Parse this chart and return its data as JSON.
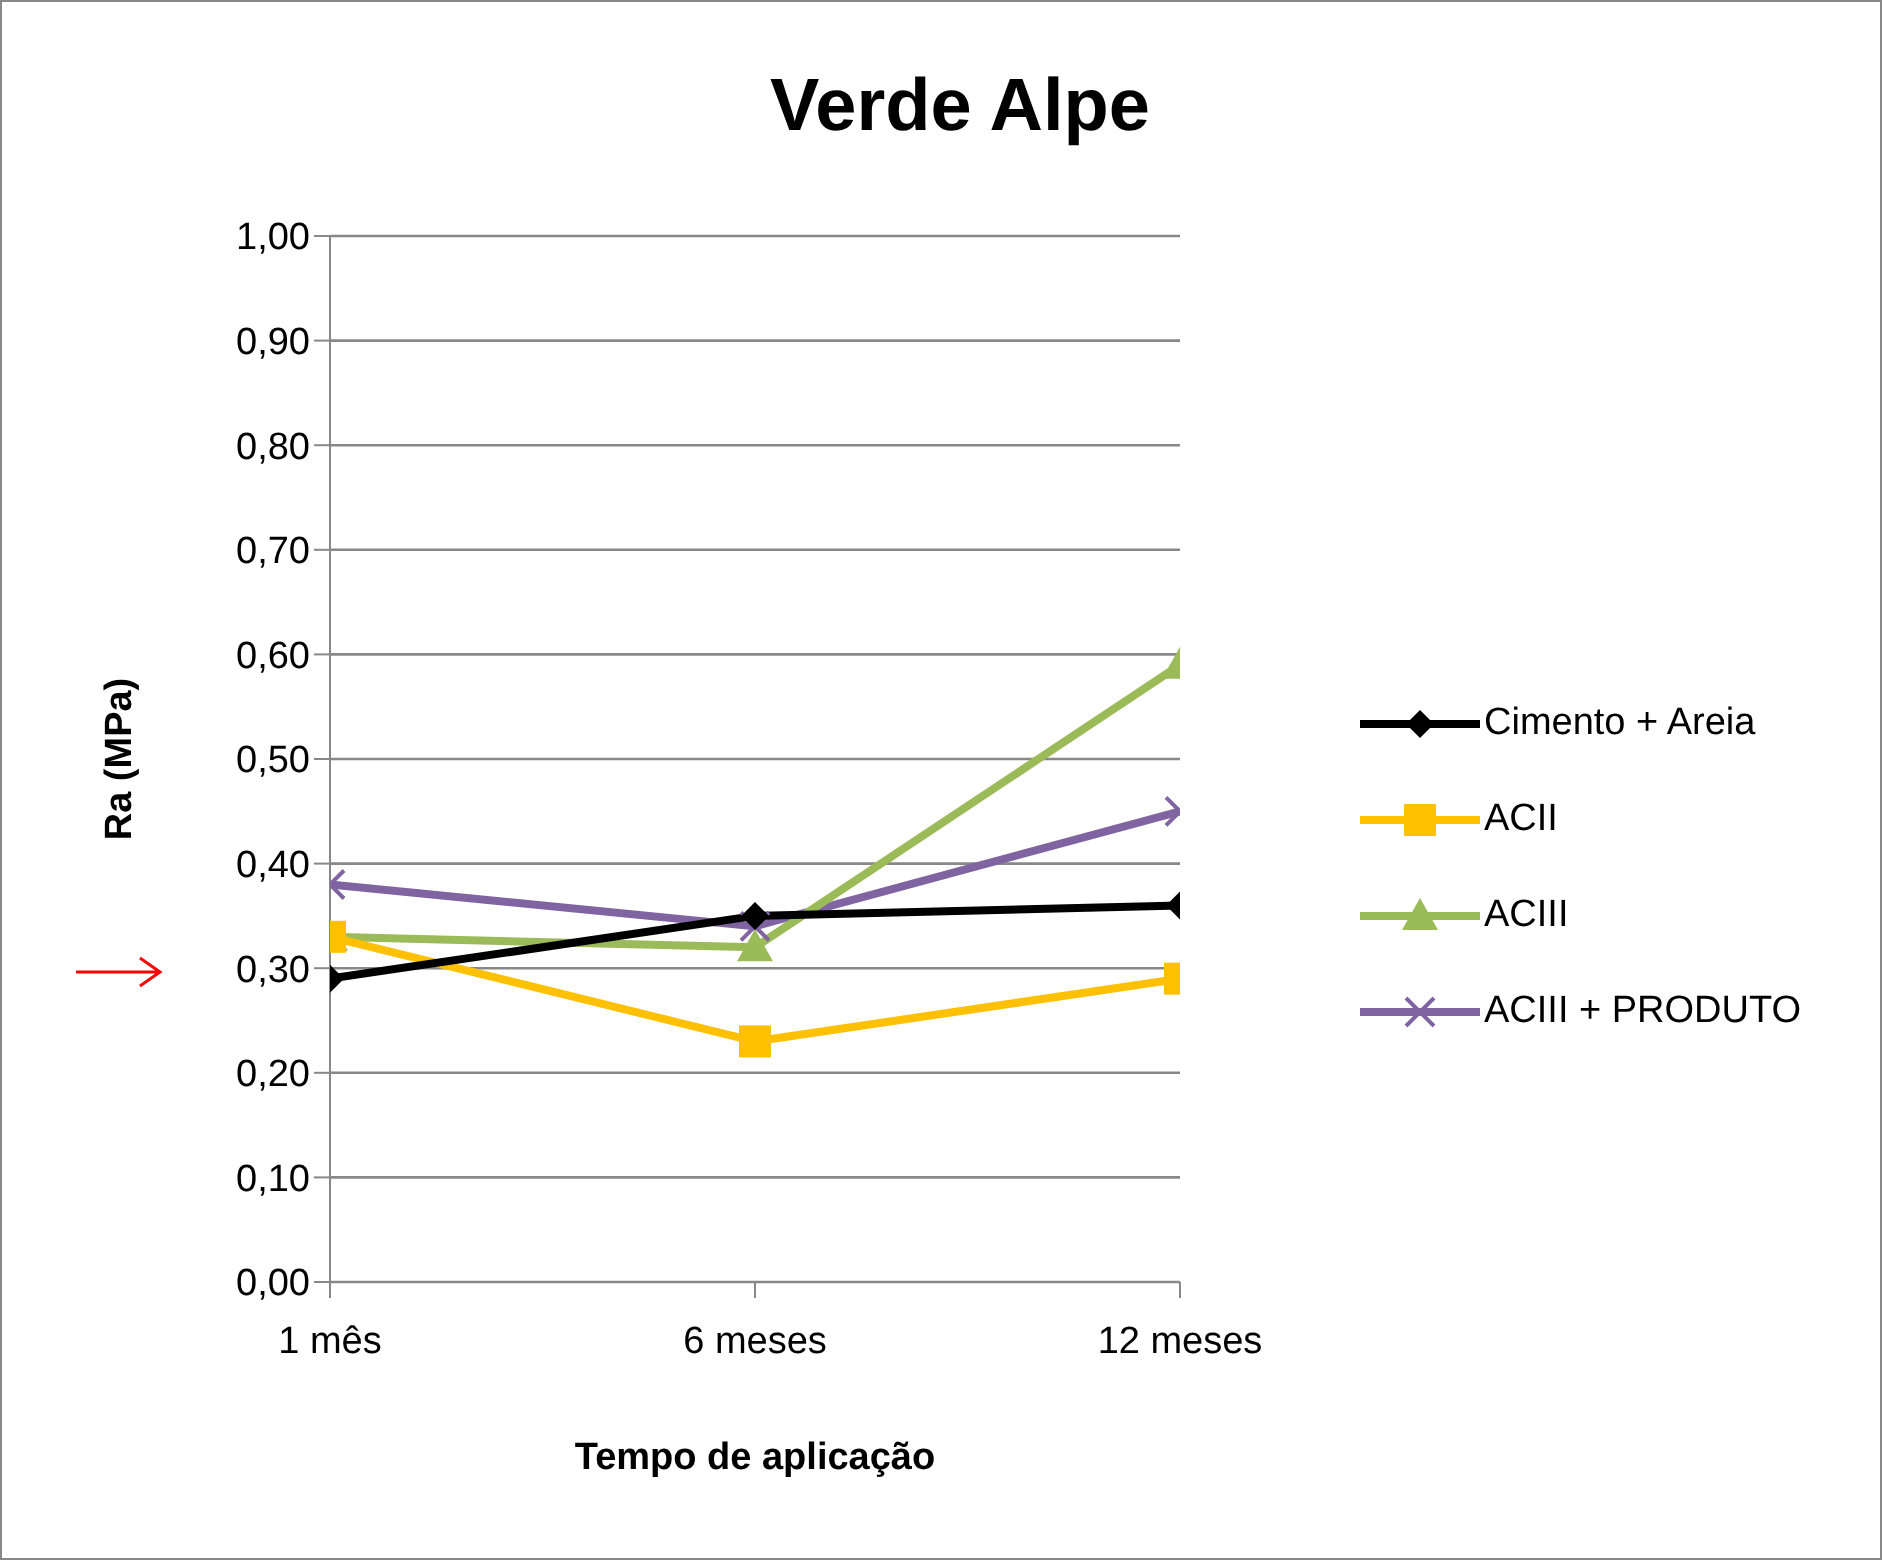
{
  "chart_data": {
    "type": "line",
    "title": "Verde Alpe",
    "xlabel": "Tempo de aplicação",
    "ylabel": "Ra (MPa)",
    "categories": [
      "1 mês",
      "6 meses",
      "12 meses"
    ],
    "ylim": [
      0,
      1
    ],
    "yticks": [
      {
        "value": 0,
        "label": "0,00"
      },
      {
        "value": 0.1,
        "label": "0,10"
      },
      {
        "value": 0.2,
        "label": "0,20"
      },
      {
        "value": 0.3,
        "label": "0,30"
      },
      {
        "value": 0.4,
        "label": "0,40"
      },
      {
        "value": 0.5,
        "label": "0,50"
      },
      {
        "value": 0.6,
        "label": "0,60"
      },
      {
        "value": 0.7,
        "label": "0,70"
      },
      {
        "value": 0.8,
        "label": "0,80"
      },
      {
        "value": 0.9,
        "label": "0,90"
      },
      {
        "value": 1,
        "label": "1,00"
      }
    ],
    "grid": "y",
    "legend": "right",
    "series": [
      {
        "name": "Cimento + Areia",
        "color": "#000000",
        "marker": "diamond",
        "values": [
          0.29,
          0.35,
          0.36
        ]
      },
      {
        "name": "ACII",
        "color": "#ffc000",
        "marker": "square",
        "values": [
          0.33,
          0.23,
          0.29
        ]
      },
      {
        "name": "ACIII",
        "color": "#9bbb59",
        "marker": "triangle",
        "values": [
          0.33,
          0.32,
          0.59
        ]
      },
      {
        "name": "ACIII + PRODUTO",
        "color": "#8064a2",
        "marker": "cross",
        "values": [
          0.38,
          0.34,
          0.45
        ]
      }
    ]
  }
}
